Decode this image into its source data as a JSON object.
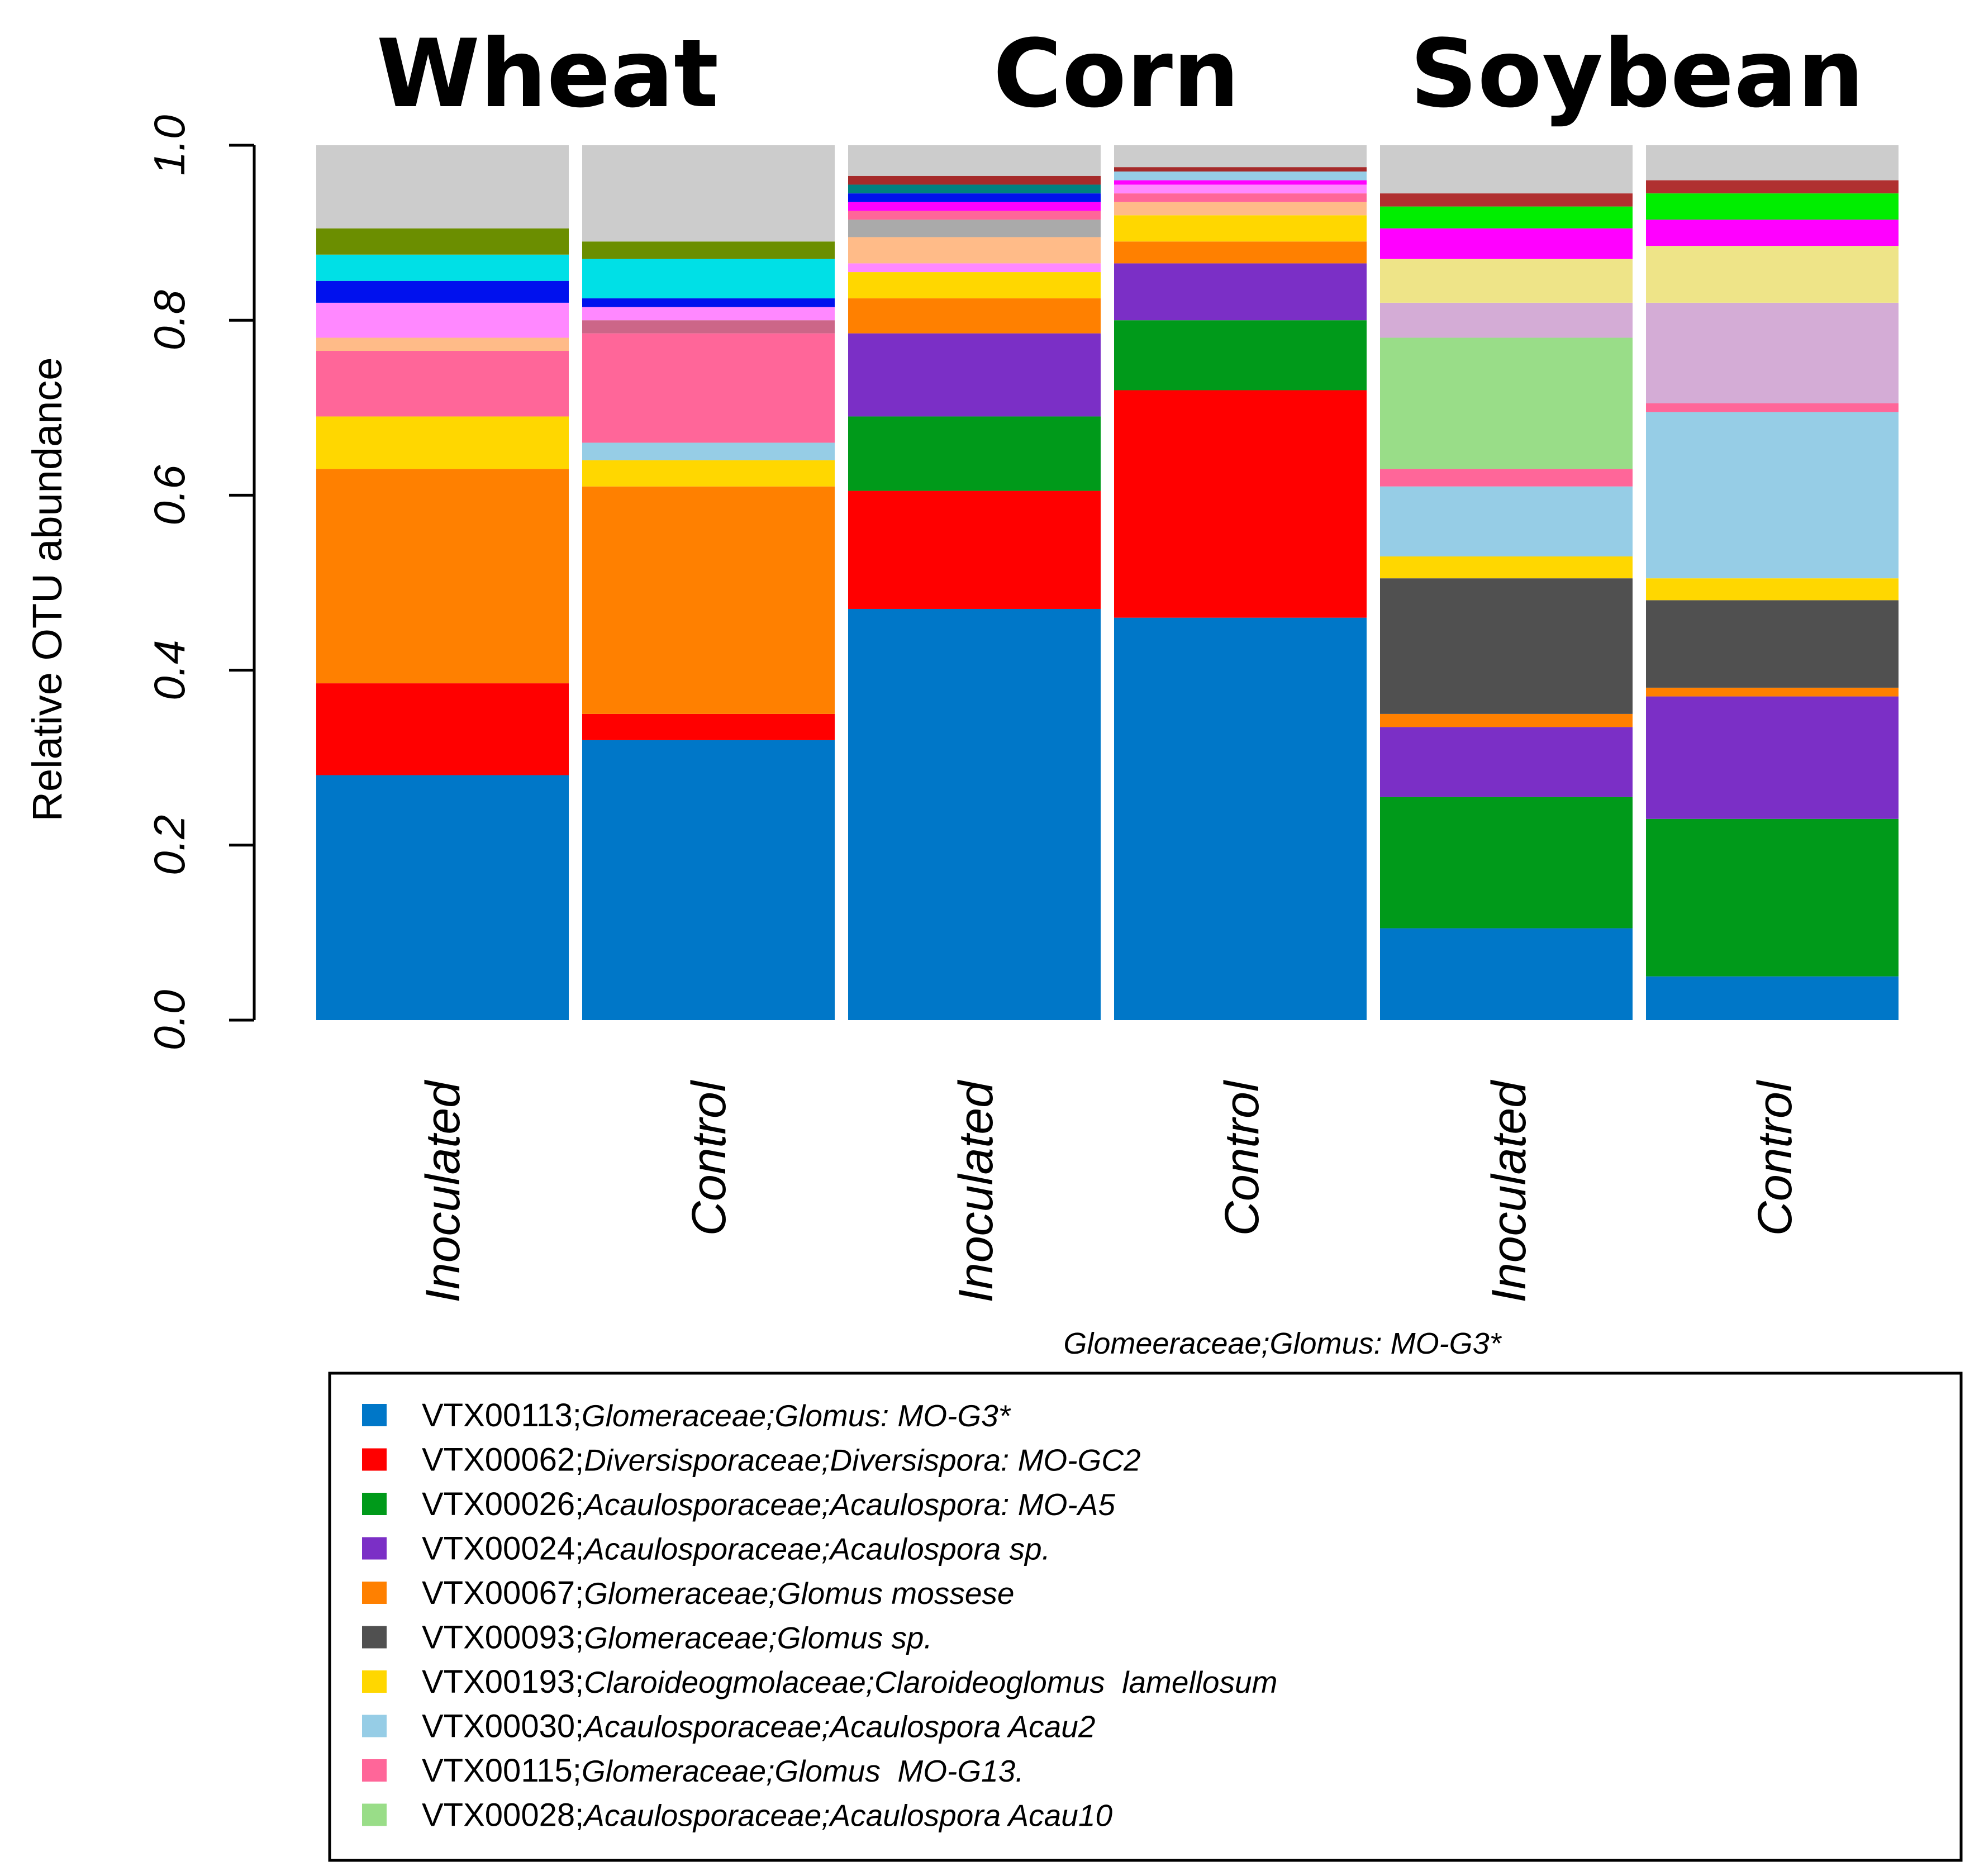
{
  "chart_data": {
    "type": "bar",
    "stacked": true,
    "ylabel": "Relative OTU abundance",
    "ylim": [
      0,
      1
    ],
    "yticks": [
      "0.0",
      "0.2",
      "0.4",
      "0.6",
      "0.8",
      "1.0"
    ],
    "groups": [
      {
        "title": "Wheat",
        "bars": [
          "wheat_inoculated",
          "wheat_control"
        ]
      },
      {
        "title": "Corn",
        "bars": [
          "corn_inoculated",
          "corn_control"
        ]
      },
      {
        "title": "Soybean",
        "bars": [
          "soy_inoculated",
          "soy_control"
        ]
      }
    ],
    "categories": [
      "Inoculated",
      "Control",
      "Inoculated",
      "Control",
      "Inoculated",
      "Control"
    ],
    "annotation": "Glomeeraceae;Glomus: MO-G3*",
    "legend": [
      {
        "code": "VTX00113;",
        "taxon": "Glomeraceae;Glomus: MO-G3*",
        "color": "#0077C8"
      },
      {
        "code": "VTX00062;",
        "taxon": "Diversisporaceae;Diversispora: MO-GC2",
        "color": "#FF0000"
      },
      {
        "code": "VTX00026;",
        "taxon": "Acaulosporaceae;Acaulospora: MO-A5",
        "color": "#009A1A"
      },
      {
        "code": "VTX00024;",
        "taxon": "Acaulosporaceae;Acaulospora sp.",
        "color": "#7B2FC6"
      },
      {
        "code": "VTX00067;",
        "taxon": "Glomeraceae;Glomus mossese",
        "color": "#FF8000"
      },
      {
        "code": "VTX00093;",
        "taxon": "Glomeraceae;Glomus sp.",
        "color": "#505050"
      },
      {
        "code": "VTX00193;",
        "taxon": "Claroideogmolaceae;Claroideoglomus  lamellosum",
        "color": "#FFD700"
      },
      {
        "code": "VTX00030;",
        "taxon": "Acaulosporaceae;Acaulospora Acau2",
        "color": "#96CDE6"
      },
      {
        "code": "VTX00115;",
        "taxon": "Glomeraceae;Glomus  MO-G13.",
        "color": "#FF6699"
      },
      {
        "code": "VTX00028;",
        "taxon": "Acaulosporaceae;Acaulospora Acau10",
        "color": "#99DD88"
      }
    ],
    "series": [
      {
        "name": "Wheat Inoculated",
        "segments": [
          {
            "color": "#0077C8",
            "value": 0.28
          },
          {
            "color": "#FF0000",
            "value": 0.105
          },
          {
            "color": "#FF8000",
            "value": 0.245
          },
          {
            "color": "#FFD700",
            "value": 0.06
          },
          {
            "color": "#FF6699",
            "value": 0.075
          },
          {
            "color": "#FFBB88",
            "value": 0.015
          },
          {
            "color": "#FF88FF",
            "value": 0.04
          },
          {
            "color": "#0011EE",
            "value": 0.025
          },
          {
            "color": "#00E0E6",
            "value": 0.03
          },
          {
            "color": "#6B8E00",
            "value": 0.03
          },
          {
            "color": "#CCCCCC",
            "value": 0.095
          }
        ]
      },
      {
        "name": "Wheat Control",
        "segments": [
          {
            "color": "#0077C8",
            "value": 0.32
          },
          {
            "color": "#FF0000",
            "value": 0.03
          },
          {
            "color": "#FF8000",
            "value": 0.26
          },
          {
            "color": "#FFD700",
            "value": 0.03
          },
          {
            "color": "#96CDE6",
            "value": 0.02
          },
          {
            "color": "#FF6699",
            "value": 0.125
          },
          {
            "color": "#CC6688",
            "value": 0.015
          },
          {
            "color": "#FF88FF",
            "value": 0.015
          },
          {
            "color": "#0011EE",
            "value": 0.01
          },
          {
            "color": "#00E0E6",
            "value": 0.045
          },
          {
            "color": "#6B8E00",
            "value": 0.02
          },
          {
            "color": "#CCCCCC",
            "value": 0.11
          }
        ]
      },
      {
        "name": "Corn Inoculated",
        "segments": [
          {
            "color": "#0077C8",
            "value": 0.47
          },
          {
            "color": "#FF0000",
            "value": 0.135
          },
          {
            "color": "#009A1A",
            "value": 0.085
          },
          {
            "color": "#7B2FC6",
            "value": 0.095
          },
          {
            "color": "#FF8000",
            "value": 0.04
          },
          {
            "color": "#FFD700",
            "value": 0.03
          },
          {
            "color": "#FF88FF",
            "value": 0.01
          },
          {
            "color": "#FFBB88",
            "value": 0.03
          },
          {
            "color": "#AAAAAA",
            "value": 0.02
          },
          {
            "color": "#FF6699",
            "value": 0.01
          },
          {
            "color": "#FF00FF",
            "value": 0.01
          },
          {
            "color": "#0011EE",
            "value": 0.01
          },
          {
            "color": "#008080",
            "value": 0.01
          },
          {
            "color": "#A52A2A",
            "value": 0.01
          },
          {
            "color": "#CCCCCC",
            "value": 0.035
          }
        ]
      },
      {
        "name": "Corn Control",
        "segments": [
          {
            "color": "#0077C8",
            "value": 0.46
          },
          {
            "color": "#FF0000",
            "value": 0.26
          },
          {
            "color": "#009A1A",
            "value": 0.08
          },
          {
            "color": "#7B2FC6",
            "value": 0.065
          },
          {
            "color": "#FF8000",
            "value": 0.025
          },
          {
            "color": "#FFD700",
            "value": 0.03
          },
          {
            "color": "#FFBB88",
            "value": 0.015
          },
          {
            "color": "#FF6699",
            "value": 0.01
          },
          {
            "color": "#FF88FF",
            "value": 0.01
          },
          {
            "color": "#FF00FF",
            "value": 0.005
          },
          {
            "color": "#96CDE6",
            "value": 0.01
          },
          {
            "color": "#A52A2A",
            "value": 0.005
          },
          {
            "color": "#CCCCCC",
            "value": 0.025
          }
        ]
      },
      {
        "name": "Soybean Inoculated",
        "segments": [
          {
            "color": "#0077C8",
            "value": 0.105
          },
          {
            "color": "#009A1A",
            "value": 0.15
          },
          {
            "color": "#7B2FC6",
            "value": 0.08
          },
          {
            "color": "#FF8000",
            "value": 0.015
          },
          {
            "color": "#505050",
            "value": 0.155
          },
          {
            "color": "#FFD700",
            "value": 0.025
          },
          {
            "color": "#96CDE6",
            "value": 0.08
          },
          {
            "color": "#FF6699",
            "value": 0.02
          },
          {
            "color": "#99DD88",
            "value": 0.15
          },
          {
            "color": "#D4ACD6",
            "value": 0.04
          },
          {
            "color": "#EEE488",
            "value": 0.05
          },
          {
            "color": "#FF00FF",
            "value": 0.035
          },
          {
            "color": "#00EE00",
            "value": 0.025
          },
          {
            "color": "#B03030",
            "value": 0.015
          },
          {
            "color": "#CCCCCC",
            "value": 0.055
          }
        ]
      },
      {
        "name": "Soybean Control",
        "segments": [
          {
            "color": "#0077C8",
            "value": 0.05
          },
          {
            "color": "#009A1A",
            "value": 0.18
          },
          {
            "color": "#7B2FC6",
            "value": 0.14
          },
          {
            "color": "#FF8000",
            "value": 0.01
          },
          {
            "color": "#505050",
            "value": 0.1
          },
          {
            "color": "#FFD700",
            "value": 0.025
          },
          {
            "color": "#96CDE6",
            "value": 0.19
          },
          {
            "color": "#FF6699",
            "value": 0.01
          },
          {
            "color": "#D4ACD6",
            "value": 0.115
          },
          {
            "color": "#EEE488",
            "value": 0.065
          },
          {
            "color": "#FF00FF",
            "value": 0.03
          },
          {
            "color": "#00EE00",
            "value": 0.03
          },
          {
            "color": "#B03030",
            "value": 0.015
          },
          {
            "color": "#CCCCCC",
            "value": 0.04
          }
        ]
      }
    ]
  }
}
